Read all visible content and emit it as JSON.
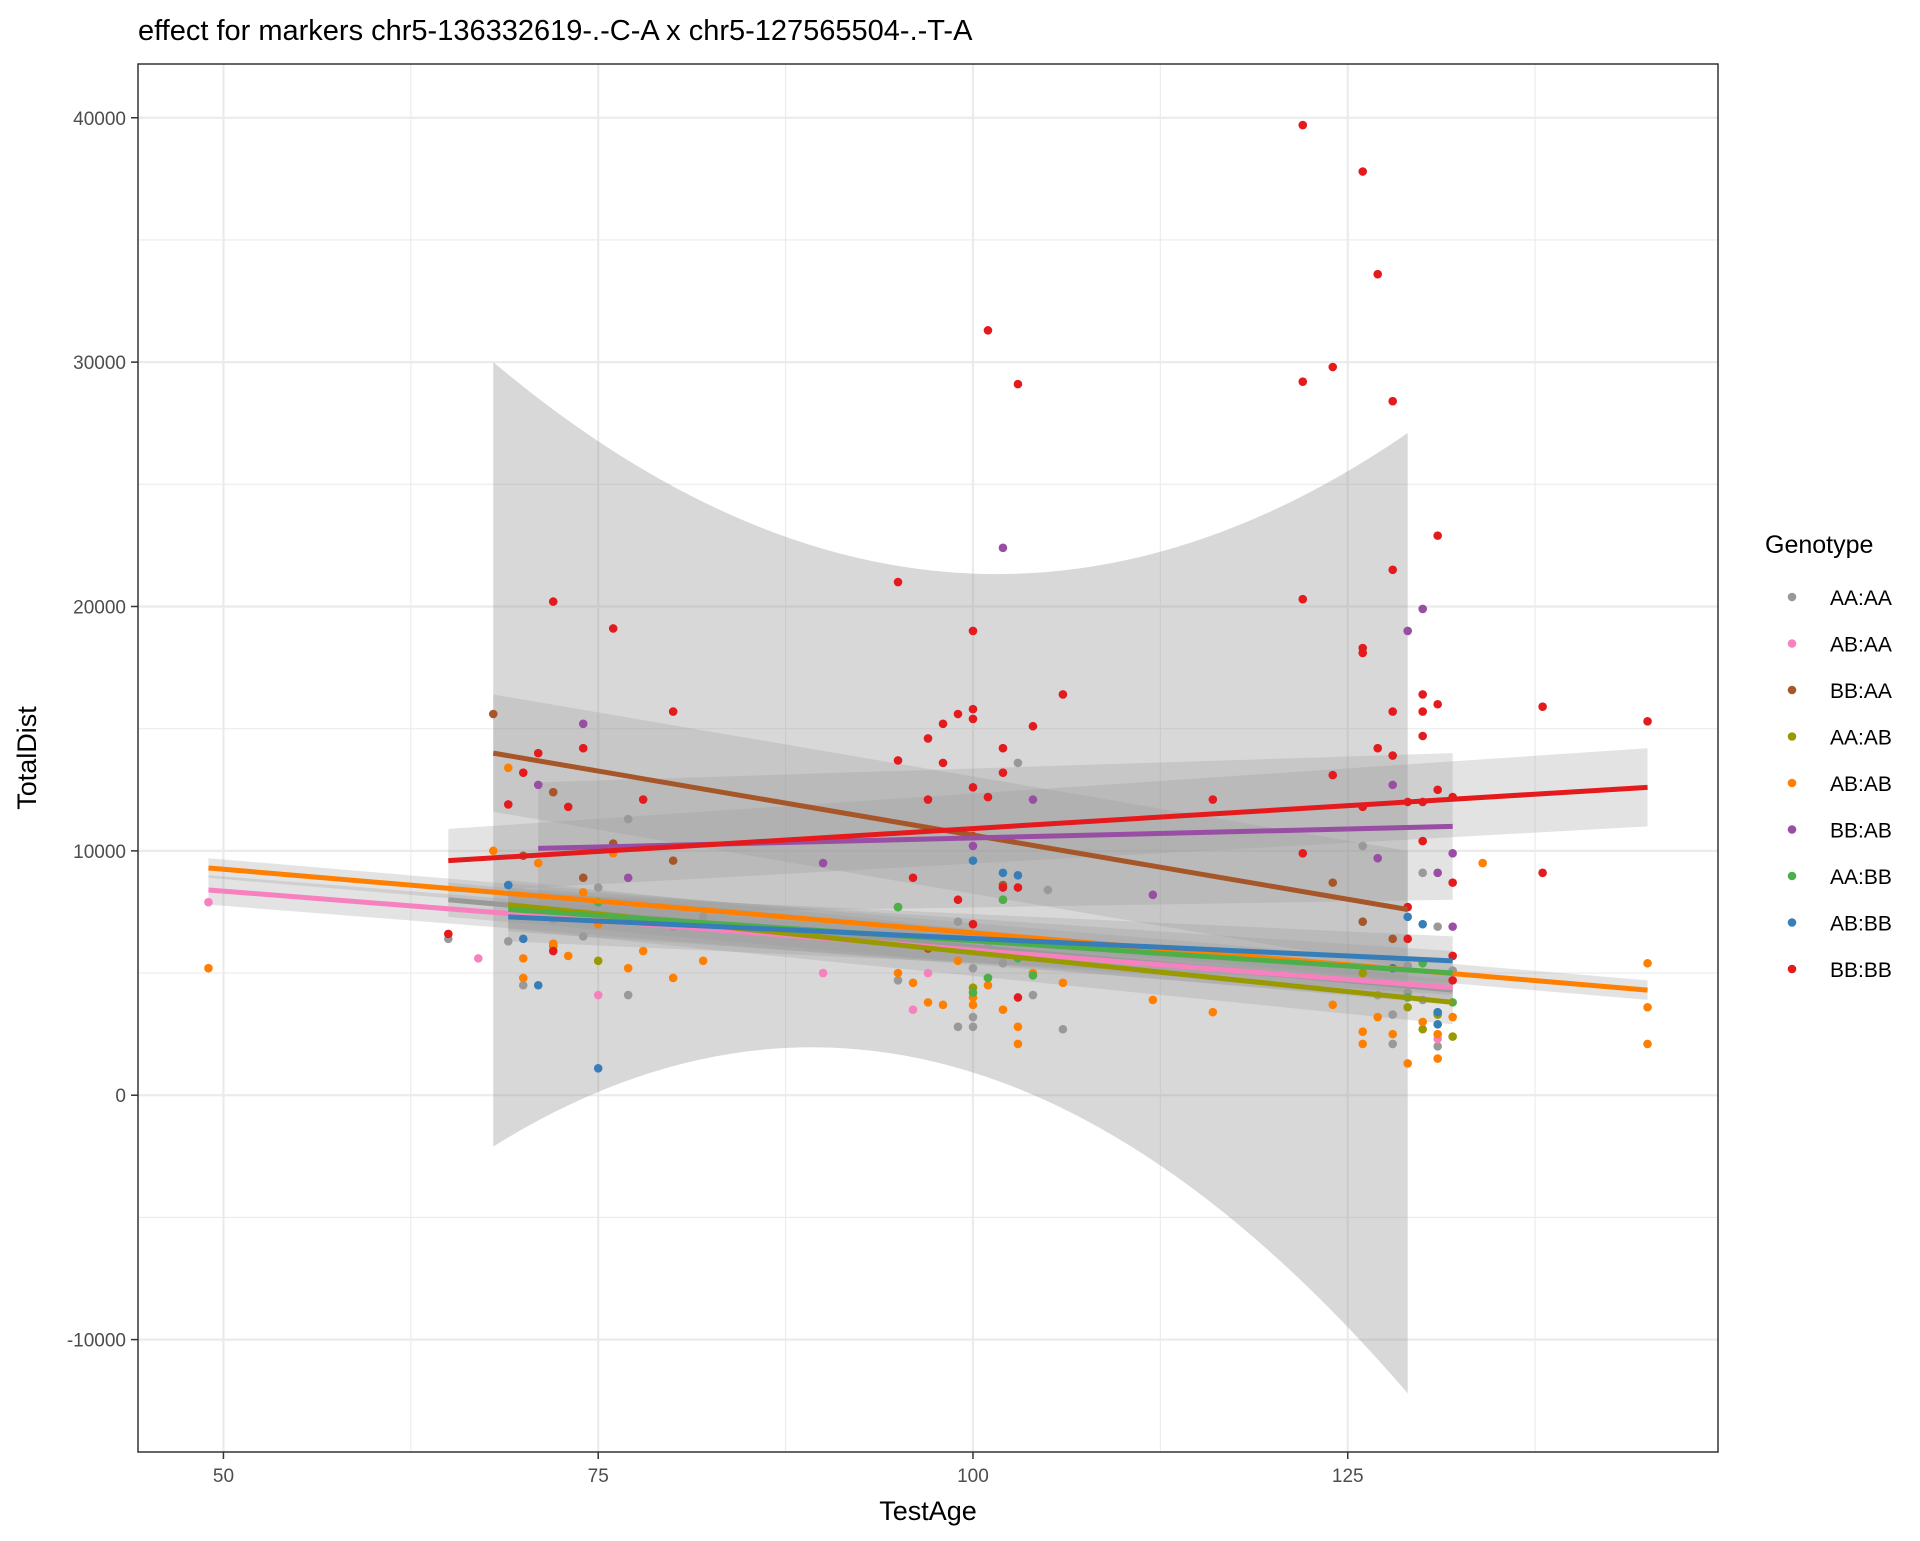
{
  "chart_data": {
    "type": "scatter",
    "title": "effect for markers chr5-136332619-.-C-A x chr5-127565504-.-T-A",
    "xlabel": "TestAge",
    "ylabel": "TotalDist",
    "xlim": [
      44.3,
      149.7
    ],
    "ylim": [
      -14600,
      42200
    ],
    "x_ticks": [
      50,
      75,
      100,
      125
    ],
    "y_ticks": [
      -10000,
      0,
      10000,
      20000,
      30000,
      40000
    ],
    "grid": true,
    "legend": {
      "title": "Genotype",
      "position": "right"
    },
    "series": [
      {
        "name": "AA:AA",
        "color": "#999999",
        "points": [
          [
            65,
            6400
          ],
          [
            69,
            6300
          ],
          [
            70,
            4500
          ],
          [
            72,
            7200
          ],
          [
            74,
            6500
          ],
          [
            75,
            8500
          ],
          [
            77,
            11300
          ],
          [
            77,
            4100
          ],
          [
            80,
            6900
          ],
          [
            82,
            7300
          ],
          [
            95,
            4700
          ],
          [
            99,
            2800
          ],
          [
            99,
            7100
          ],
          [
            100,
            2800
          ],
          [
            100,
            3200
          ],
          [
            100,
            5200
          ],
          [
            101,
            6100
          ],
          [
            101,
            4800
          ],
          [
            102,
            5400
          ],
          [
            103,
            13600
          ],
          [
            104,
            4100
          ],
          [
            105,
            8400
          ],
          [
            106,
            2700
          ],
          [
            126,
            10200
          ],
          [
            127,
            4100
          ],
          [
            128,
            3300
          ],
          [
            128,
            2100
          ],
          [
            129,
            5300
          ],
          [
            129,
            4200
          ],
          [
            130,
            9100
          ],
          [
            130,
            3900
          ],
          [
            131,
            6900
          ],
          [
            131,
            2000
          ],
          [
            132,
            5100
          ]
        ],
        "fit": {
          "x": [
            65,
            132
          ],
          "y": [
            8000,
            4300
          ]
        },
        "band": {
          "x": [
            65,
            132
          ],
          "lower": [
            7300,
            3700
          ],
          "upper": [
            8700,
            4900
          ]
        }
      },
      {
        "name": "AB:AA",
        "color": "#F781BF",
        "points": [
          [
            49,
            7900
          ],
          [
            67,
            5600
          ],
          [
            75,
            4100
          ],
          [
            90,
            5000
          ],
          [
            96,
            3500
          ],
          [
            97,
            5000
          ],
          [
            131,
            2300
          ]
        ],
        "fit": {
          "x": [
            49,
            132
          ],
          "y": [
            8400,
            4400
          ]
        },
        "band": {
          "x": [
            49,
            132
          ],
          "lower": [
            7800,
            3800
          ],
          "upper": [
            9000,
            5000
          ]
        }
      },
      {
        "name": "BB:AA",
        "color": "#A65628",
        "points": [
          [
            68,
            15600
          ],
          [
            70,
            9800
          ],
          [
            72,
            12400
          ],
          [
            74,
            8900
          ],
          [
            76,
            10300
          ],
          [
            80,
            9600
          ],
          [
            97,
            6000
          ],
          [
            102,
            8600
          ],
          [
            124,
            8700
          ],
          [
            126,
            7100
          ],
          [
            128,
            6400
          ]
        ],
        "fit": {
          "x": [
            68,
            129
          ],
          "y": [
            14000,
            7600
          ]
        },
        "band": {
          "x": [
            68,
            129
          ],
          "lower": [
            11600,
            5200
          ],
          "upper": [
            16400,
            10000
          ]
        }
      },
      {
        "name": "AA:AB",
        "color": "#999900",
        "points": [
          [
            72,
            6100
          ],
          [
            75,
            5500
          ],
          [
            90,
            6500
          ],
          [
            95,
            7700
          ],
          [
            100,
            4400
          ],
          [
            102,
            8000
          ],
          [
            104,
            6300
          ],
          [
            126,
            5000
          ],
          [
            129,
            3600
          ],
          [
            130,
            2700
          ],
          [
            131,
            3300
          ],
          [
            132,
            2400
          ]
        ],
        "fit": {
          "x": [
            69,
            132
          ],
          "y": [
            7800,
            3800
          ]
        },
        "band": {
          "x": [
            69,
            132
          ],
          "lower": [
            6800,
            2900
          ],
          "upper": [
            8800,
            4700
          ]
        }
      },
      {
        "name": "AB:AB",
        "color": "#FF7F00",
        "points": [
          [
            49,
            5200
          ],
          [
            68,
            10000
          ],
          [
            69,
            13400
          ],
          [
            70,
            5600
          ],
          [
            70,
            4800
          ],
          [
            71,
            9500
          ],
          [
            72,
            6200
          ],
          [
            73,
            5700
          ],
          [
            74,
            8300
          ],
          [
            75,
            7000
          ],
          [
            76,
            9900
          ],
          [
            77,
            5200
          ],
          [
            78,
            5900
          ],
          [
            80,
            4800
          ],
          [
            82,
            5500
          ],
          [
            95,
            5000
          ],
          [
            96,
            4600
          ],
          [
            97,
            3800
          ],
          [
            98,
            3700
          ],
          [
            99,
            5500
          ],
          [
            100,
            3700
          ],
          [
            100,
            4000
          ],
          [
            101,
            4500
          ],
          [
            102,
            3500
          ],
          [
            103,
            2800
          ],
          [
            103,
            2100
          ],
          [
            104,
            5000
          ],
          [
            106,
            4600
          ],
          [
            112,
            3900
          ],
          [
            116,
            3400
          ],
          [
            124,
            3700
          ],
          [
            126,
            2100
          ],
          [
            126,
            2600
          ],
          [
            127,
            3200
          ],
          [
            128,
            2500
          ],
          [
            129,
            1300
          ],
          [
            130,
            3000
          ],
          [
            131,
            1500
          ],
          [
            131,
            2500
          ],
          [
            132,
            3200
          ],
          [
            134,
            9500
          ],
          [
            145,
            5400
          ],
          [
            145,
            3600
          ],
          [
            145,
            2100
          ]
        ],
        "fit": {
          "x": [
            49,
            145
          ],
          "y": [
            9300,
            4300
          ]
        },
        "band": {
          "x": [
            49,
            145
          ],
          "lower": [
            8900,
            3900
          ],
          "upper": [
            9700,
            4700
          ]
        }
      },
      {
        "name": "BB:AB",
        "color": "#984EA3",
        "points": [
          [
            71,
            12700
          ],
          [
            74,
            15200
          ],
          [
            77,
            8900
          ],
          [
            90,
            9500
          ],
          [
            100,
            10200
          ],
          [
            102,
            22400
          ],
          [
            104,
            12100
          ],
          [
            112,
            8200
          ],
          [
            127,
            9700
          ],
          [
            128,
            12700
          ],
          [
            129,
            19000
          ],
          [
            130,
            19900
          ],
          [
            131,
            9100
          ],
          [
            132,
            9900
          ],
          [
            132,
            6900
          ]
        ],
        "fit": {
          "x": [
            71,
            132
          ],
          "y": [
            10100,
            11000
          ]
        },
        "band": {
          "x": [
            71,
            132
          ],
          "lower": [
            7400,
            8000
          ],
          "upper": [
            12800,
            14000
          ]
        }
      },
      {
        "name": "AA:BB",
        "color": "#4DAF4A",
        "points": [
          [
            75,
            7900
          ],
          [
            95,
            7700
          ],
          [
            100,
            4200
          ],
          [
            101,
            4800
          ],
          [
            102,
            8000
          ],
          [
            103,
            5600
          ],
          [
            104,
            4900
          ],
          [
            129,
            4000
          ],
          [
            130,
            5400
          ],
          [
            132,
            3800
          ]
        ],
        "fit": {
          "x": [
            69,
            132
          ],
          "y": [
            7600,
            5000
          ]
        },
        "band": {
          "x": [
            69,
            132
          ],
          "lower": [
            6700,
            4100
          ],
          "upper": [
            8500,
            5900
          ]
        }
      },
      {
        "name": "AB:BB",
        "color": "#377EB8",
        "points": [
          [
            69,
            8600
          ],
          [
            70,
            6400
          ],
          [
            71,
            4500
          ],
          [
            75,
            1100
          ],
          [
            100,
            9600
          ],
          [
            102,
            9100
          ],
          [
            103,
            9000
          ],
          [
            128,
            5200
          ],
          [
            129,
            7300
          ],
          [
            130,
            7000
          ],
          [
            131,
            3400
          ],
          [
            131,
            2900
          ]
        ],
        "fit": {
          "x": [
            69,
            132
          ],
          "y": [
            7300,
            5500
          ]
        },
        "band": {
          "x": [
            69,
            132
          ],
          "lower": [
            6300,
            4500
          ],
          "upper": [
            8300,
            6500
          ]
        }
      },
      {
        "name": "BB:BB",
        "color": "#E41A1C",
        "points": [
          [
            65,
            6600
          ],
          [
            69,
            11900
          ],
          [
            70,
            13200
          ],
          [
            71,
            14000
          ],
          [
            72,
            20200
          ],
          [
            72,
            5900
          ],
          [
            73,
            11800
          ],
          [
            74,
            14200
          ],
          [
            76,
            19100
          ],
          [
            78,
            12100
          ],
          [
            80,
            15700
          ],
          [
            95,
            21000
          ],
          [
            95,
            13700
          ],
          [
            96,
            8900
          ],
          [
            97,
            14600
          ],
          [
            97,
            12100
          ],
          [
            98,
            15200
          ],
          [
            98,
            13600
          ],
          [
            99,
            15600
          ],
          [
            99,
            8000
          ],
          [
            100,
            19000
          ],
          [
            100,
            15800
          ],
          [
            100,
            15400
          ],
          [
            100,
            12600
          ],
          [
            100,
            10600
          ],
          [
            100,
            7000
          ],
          [
            101,
            31300
          ],
          [
            101,
            12200
          ],
          [
            102,
            14200
          ],
          [
            102,
            13200
          ],
          [
            102,
            8500
          ],
          [
            103,
            29100
          ],
          [
            103,
            8500
          ],
          [
            103,
            4000
          ],
          [
            104,
            15100
          ],
          [
            106,
            16400
          ],
          [
            116,
            12100
          ],
          [
            122,
            39700
          ],
          [
            122,
            29200
          ],
          [
            122,
            20300
          ],
          [
            122,
            9900
          ],
          [
            124,
            29800
          ],
          [
            124,
            13100
          ],
          [
            126,
            37800
          ],
          [
            126,
            18300
          ],
          [
            126,
            18100
          ],
          [
            126,
            11800
          ],
          [
            127,
            33600
          ],
          [
            127,
            14200
          ],
          [
            128,
            28400
          ],
          [
            128,
            21500
          ],
          [
            128,
            15700
          ],
          [
            128,
            13900
          ],
          [
            129,
            12000
          ],
          [
            129,
            7700
          ],
          [
            129,
            6400
          ],
          [
            130,
            16400
          ],
          [
            130,
            15700
          ],
          [
            130,
            14700
          ],
          [
            130,
            12000
          ],
          [
            130,
            10400
          ],
          [
            131,
            22900
          ],
          [
            131,
            16000
          ],
          [
            131,
            12500
          ],
          [
            132,
            12200
          ],
          [
            132,
            8700
          ],
          [
            132,
            5700
          ],
          [
            132,
            4700
          ],
          [
            138,
            15900
          ],
          [
            138,
            9100
          ],
          [
            145,
            15300
          ]
        ],
        "fit": {
          "x": [
            65,
            145
          ],
          "y": [
            9600,
            12600
          ]
        },
        "band": {
          "x": [
            65,
            145
          ],
          "lower": [
            8300,
            11000
          ],
          "upper": [
            10900,
            14200
          ]
        }
      }
    ],
    "wide_bands": [
      {
        "x": [
          68,
          129
        ],
        "lower": [
          -2100,
          -12200
        ],
        "upper": [
          30000,
          27100
        ],
        "dip": 21400,
        "rise": 1200
      }
    ]
  }
}
